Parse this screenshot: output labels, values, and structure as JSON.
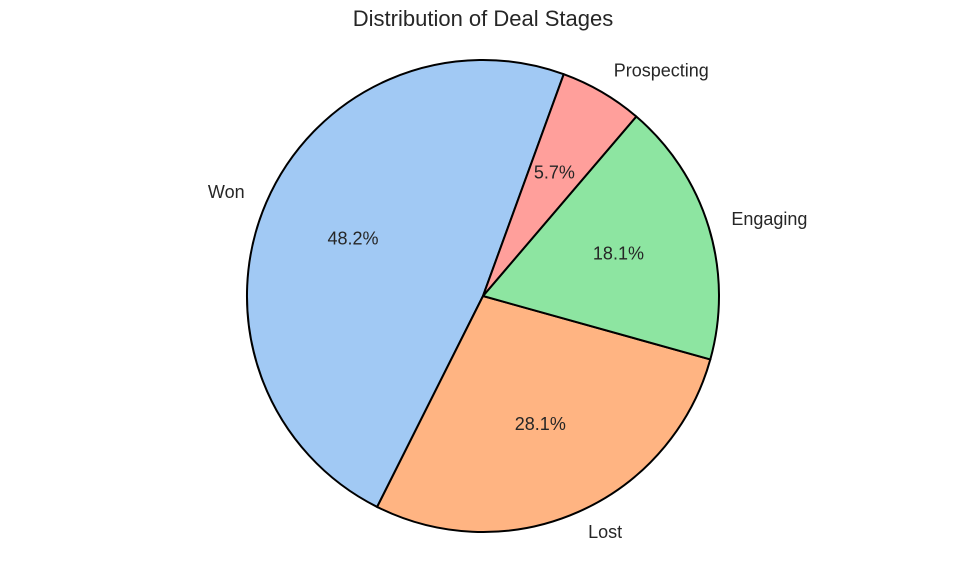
{
  "chart_data": {
    "type": "pie",
    "title": "Distribution of Deal Stages",
    "slices": [
      {
        "label": "Won",
        "value": 48.2,
        "pct_label": "48.2%",
        "color": "#a1c9f4"
      },
      {
        "label": "Lost",
        "value": 28.1,
        "pct_label": "28.1%",
        "color": "#ffb482"
      },
      {
        "label": "Engaging",
        "value": 18.1,
        "pct_label": "18.1%",
        "color": "#8de5a1"
      },
      {
        "label": "Prospecting",
        "value": 5.7,
        "pct_label": "5.7%",
        "color": "#ff9f9b"
      }
    ],
    "start_angle_deg": 70,
    "direction": "counterclockwise",
    "edge_color": "#000000",
    "legend": "none"
  }
}
